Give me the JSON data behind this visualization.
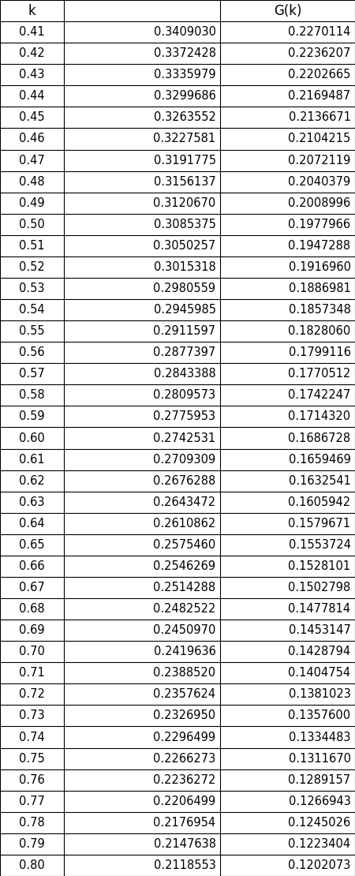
{
  "headers": [
    "k",
    "",
    "G(k)"
  ],
  "rows": [
    [
      "0.41",
      "0.3409030",
      "0.2270114"
    ],
    [
      "0.42",
      "0.3372428",
      "0.2236207"
    ],
    [
      "0.43",
      "0.3335979",
      "0.2202665"
    ],
    [
      "0.44",
      "0.3299686",
      "0.2169487"
    ],
    [
      "0.45",
      "0.3263552",
      "0.2136671"
    ],
    [
      "0.46",
      "0.3227581",
      "0.2104215"
    ],
    [
      "0.47",
      "0.3191775",
      "0.2072119"
    ],
    [
      "0.48",
      "0.3156137",
      "0.2040379"
    ],
    [
      "0.49",
      "0.3120670",
      "0.2008996"
    ],
    [
      "0.50",
      "0.3085375",
      "0.1977966"
    ],
    [
      "0.51",
      "0.3050257",
      "0.1947288"
    ],
    [
      "0.52",
      "0.3015318",
      "0.1916960"
    ],
    [
      "0.53",
      "0.2980559",
      "0.1886981"
    ],
    [
      "0.54",
      "0.2945985",
      "0.1857348"
    ],
    [
      "0.55",
      "0.2911597",
      "0.1828060"
    ],
    [
      "0.56",
      "0.2877397",
      "0.1799116"
    ],
    [
      "0.57",
      "0.2843388",
      "0.1770512"
    ],
    [
      "0.58",
      "0.2809573",
      "0.1742247"
    ],
    [
      "0.59",
      "0.2775953",
      "0.1714320"
    ],
    [
      "0.60",
      "0.2742531",
      "0.1686728"
    ],
    [
      "0.61",
      "0.2709309",
      "0.1659469"
    ],
    [
      "0.62",
      "0.2676288",
      "0.1632541"
    ],
    [
      "0.63",
      "0.2643472",
      "0.1605942"
    ],
    [
      "0.64",
      "0.2610862",
      "0.1579671"
    ],
    [
      "0.65",
      "0.2575460",
      "0.1553724"
    ],
    [
      "0.66",
      "0.2546269",
      "0.1528101"
    ],
    [
      "0.67",
      "0.2514288",
      "0.1502798"
    ],
    [
      "0.68",
      "0.2482522",
      "0.1477814"
    ],
    [
      "0.69",
      "0.2450970",
      "0.1453147"
    ],
    [
      "0.70",
      "0.2419636",
      "0.1428794"
    ],
    [
      "0.71",
      "0.2388520",
      "0.1404754"
    ],
    [
      "0.72",
      "0.2357624",
      "0.1381023"
    ],
    [
      "0.73",
      "0.2326950",
      "0.1357600"
    ],
    [
      "0.74",
      "0.2296499",
      "0.1334483"
    ],
    [
      "0.75",
      "0.2266273",
      "0.1311670"
    ],
    [
      "0.76",
      "0.2236272",
      "0.1289157"
    ],
    [
      "0.77",
      "0.2206499",
      "0.1266943"
    ],
    [
      "0.78",
      "0.2176954",
      "0.1245026"
    ],
    [
      "0.79",
      "0.2147638",
      "0.1223404"
    ],
    [
      "0.80",
      "0.2118553",
      "0.1202073"
    ]
  ],
  "col_boundaries": [
    0.0,
    0.18,
    0.62,
    1.0
  ],
  "col_aligns": [
    "center",
    "right",
    "right"
  ],
  "header_fontsize": 12,
  "cell_fontsize": 10.5,
  "background_color": "#ffffff",
  "line_color": "#000000",
  "text_color": "#000000",
  "fig_width": 4.5,
  "fig_height": 11.1,
  "dpi": 100
}
